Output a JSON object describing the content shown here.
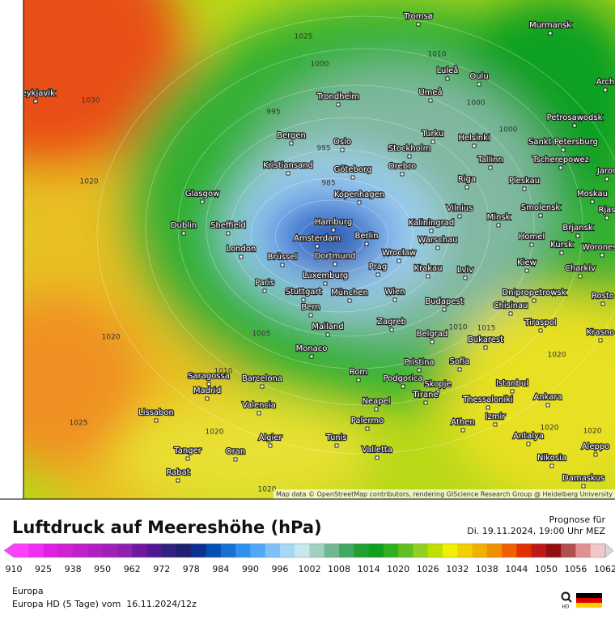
{
  "header": {
    "title": "Luftdruck auf Meereshöhe (hPa)",
    "forecast_label": "Prognose für",
    "forecast_time": "Di. 19.11.2024, 19:00 Uhr MEZ"
  },
  "map": {
    "attribution": "Map data © OpenStreetMap contributors, rendering GIScience Research Group @ Heidelberg University",
    "cities": [
      "Tromsø",
      "Murmansk",
      "Reykjavik",
      "Luleå",
      "Oulu",
      "Trondheim",
      "Umeå",
      "Petrosawodsk",
      "Bergen",
      "Oslo",
      "Turku",
      "Helsinki",
      "Sankt Petersburg",
      "Stockholm",
      "Tallinn",
      "Tscherepowez",
      "Kristiansand",
      "Göteborg",
      "Orebro",
      "Riga",
      "Pleskau",
      "Jaros",
      "Glasgow",
      "Kopenhagen",
      "Moskau",
      "Vilnius",
      "Minsk",
      "Smolensk",
      "Dublin",
      "Sheffield",
      "Hamburg",
      "Kaliningrad",
      "Brjansk",
      "Homel",
      "Berlin",
      "Amsterdam",
      "Warschau",
      "London",
      "Dortmund",
      "Brüssel",
      "Wrocław",
      "Kursk",
      "Woronesh",
      "Kiew",
      "Krakau",
      "Prag",
      "Lviv",
      "Charkiv",
      "Paris",
      "Luxemburg",
      "Stuttgart",
      "München",
      "Wien",
      "Dnipropetrowsk",
      "Rosto",
      "Budapest",
      "Chisinau",
      "Bern",
      "Mailand",
      "Zagreb",
      "Tiraspol",
      "Krasno",
      "Belgrad",
      "Bukarest",
      "Monaco",
      "Pristina",
      "Sofia",
      "Saragossa",
      "Barcelona",
      "Rom",
      "Podgorica",
      "Istanbul",
      "Madrid",
      "Skopje",
      "Ankara",
      "Tirane",
      "Thessaloniki",
      "Neapel",
      "Valencia",
      "Lissabon",
      "Izmir",
      "Palermo",
      "Athen",
      "Algier",
      "Tunis",
      "Antalya",
      "Aleppo",
      "Valletta",
      "Tanger",
      "Oran",
      "Nikosia",
      "Rabat",
      "Damaskus",
      "Arch",
      "Rjas"
    ],
    "isobar_labels": [
      "1025",
      "1010",
      "1030",
      "1000",
      "995",
      "1000",
      "1000",
      "995",
      "985",
      "1020",
      "1020",
      "1005",
      "1010",
      "1010",
      "1015",
      "1025",
      "1020",
      "1020",
      "1020",
      "1020",
      "1020",
      "1015"
    ]
  },
  "colorbar": {
    "ticks": [
      910,
      925,
      938,
      950,
      962,
      972,
      978,
      984,
      990,
      996,
      1002,
      1008,
      1014,
      1020,
      1026,
      1032,
      1038,
      1044,
      1050,
      1056,
      1062
    ],
    "colors": [
      "#ff40ff",
      "#f030f0",
      "#e020e0",
      "#d020d0",
      "#c020c8",
      "#b020c0",
      "#a020b8",
      "#9020b0",
      "#7018a0",
      "#501890",
      "#302080",
      "#202070",
      "#103090",
      "#0050b0",
      "#1870d0",
      "#3090f0",
      "#50a8f8",
      "#80c0f8",
      "#a8d8f8",
      "#c8e8f0",
      "#a0d0c0",
      "#70b890",
      "#40a860",
      "#20a030",
      "#10a020",
      "#30b020",
      "#60c020",
      "#90d020",
      "#c0e000",
      "#f0f000",
      "#f0d000",
      "#f0b000",
      "#f09000",
      "#f06000",
      "#e03000",
      "#c01818",
      "#901010",
      "#b05050",
      "#e09090",
      "#f0c8c8"
    ]
  },
  "footer": {
    "region": "Europa",
    "model_run": "Europa HD (5 Tage) vom  16.11.2024/12z",
    "logo": "HD"
  }
}
